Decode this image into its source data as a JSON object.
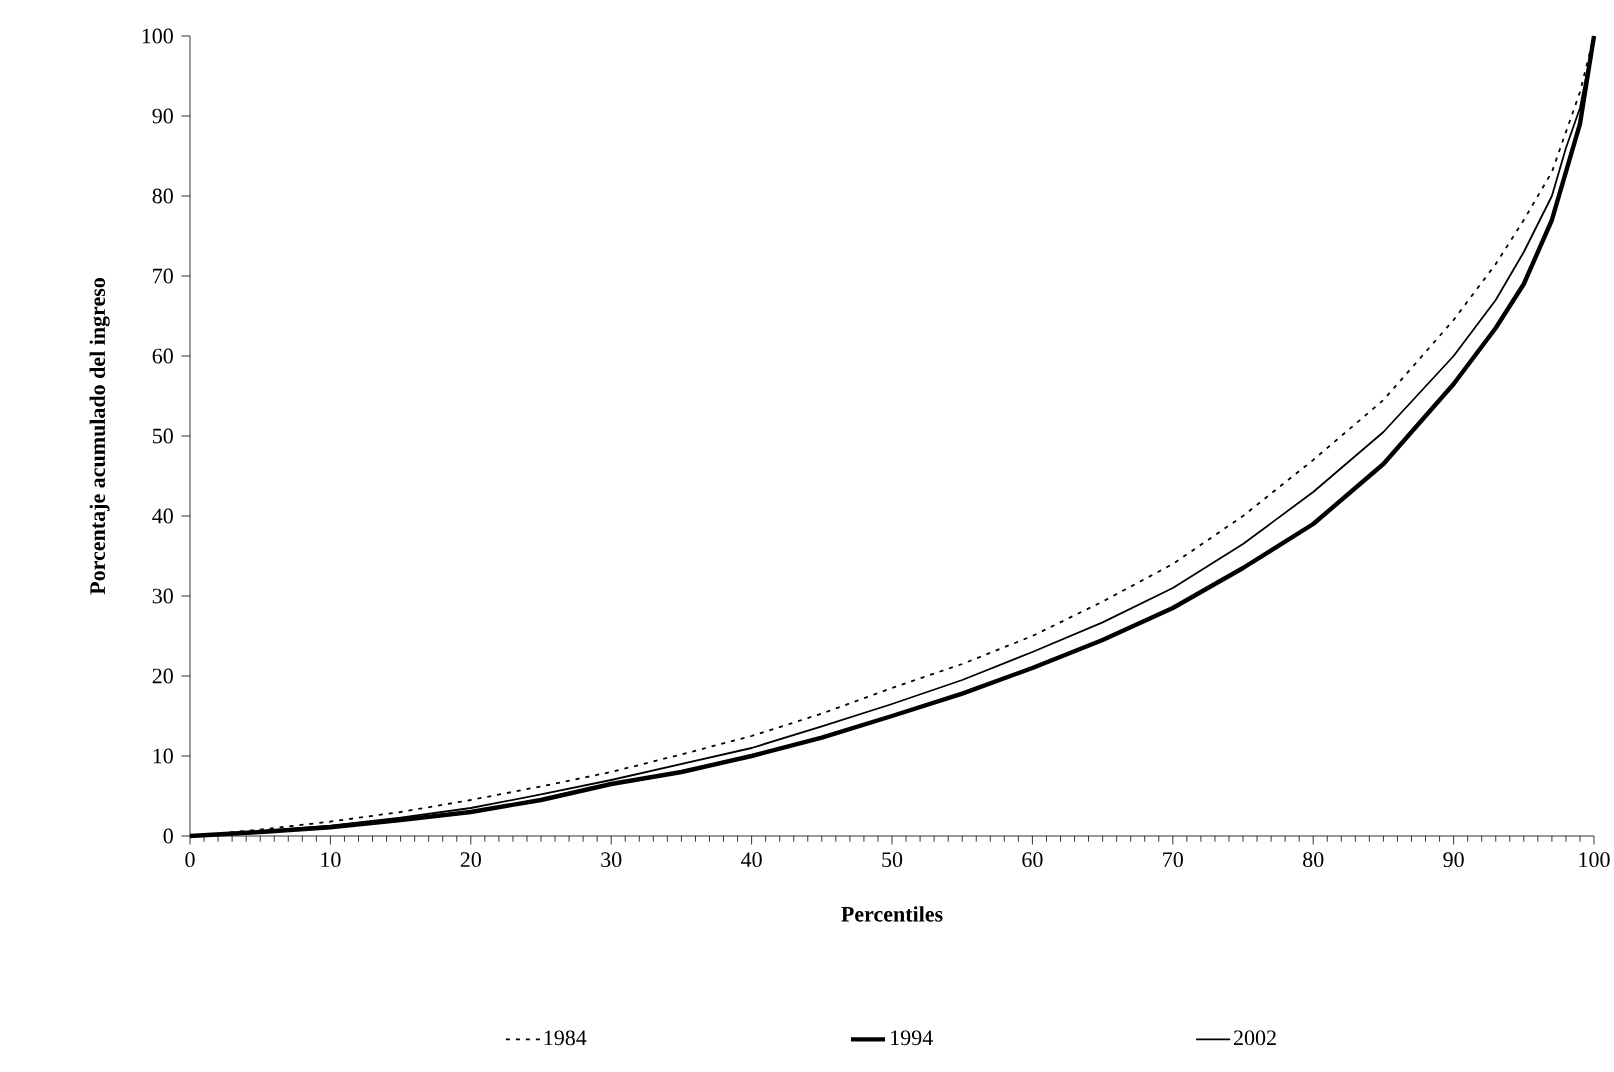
{
  "chart_data": {
    "type": "line",
    "xlabel": "Percentiles",
    "ylabel": "Porcentaje acumulado del ingreso",
    "x": [
      0,
      5,
      10,
      15,
      20,
      25,
      30,
      35,
      40,
      45,
      50,
      55,
      60,
      65,
      70,
      75,
      80,
      85,
      90,
      93,
      95,
      97,
      98,
      99,
      100
    ],
    "series": [
      {
        "name": "1984",
        "color": "#000000",
        "line_style": "dotted",
        "values": [
          0,
          0.8,
          1.8,
          3,
          4.5,
          6.2,
          8,
          10.2,
          12.5,
          15.3,
          18.5,
          21.5,
          25,
          29.3,
          34,
          40,
          47,
          54.5,
          64.5,
          71.5,
          77,
          83,
          88,
          93,
          100
        ]
      },
      {
        "name": "1994",
        "color": "#000000",
        "line_style": "solid",
        "values": [
          0,
          0.5,
          1.1,
          2,
          3,
          4.5,
          6.5,
          8,
          10,
          12.3,
          15,
          17.8,
          21,
          24.5,
          28.5,
          33.5,
          39,
          46.5,
          56.5,
          63.5,
          69,
          77,
          83,
          89,
          100
        ]
      },
      {
        "name": "2002",
        "color": "#000000",
        "line_style": "solid",
        "values": [
          0,
          0.6,
          1.3,
          2.3,
          3.5,
          5.2,
          7,
          9,
          11,
          13.7,
          16.5,
          19.5,
          23,
          26.7,
          31,
          36.5,
          43,
          50.5,
          60,
          67,
          73,
          80,
          86,
          91,
          100
        ]
      }
    ],
    "xlim": [
      0,
      100
    ],
    "ylim": [
      0,
      100
    ],
    "xticks": [
      0,
      10,
      20,
      30,
      40,
      50,
      60,
      70,
      80,
      90,
      100
    ],
    "yticks": [
      0,
      10,
      20,
      30,
      40,
      50,
      60,
      70,
      80,
      90,
      100
    ],
    "legend": "bottom",
    "grid": false,
    "marker": "none"
  }
}
